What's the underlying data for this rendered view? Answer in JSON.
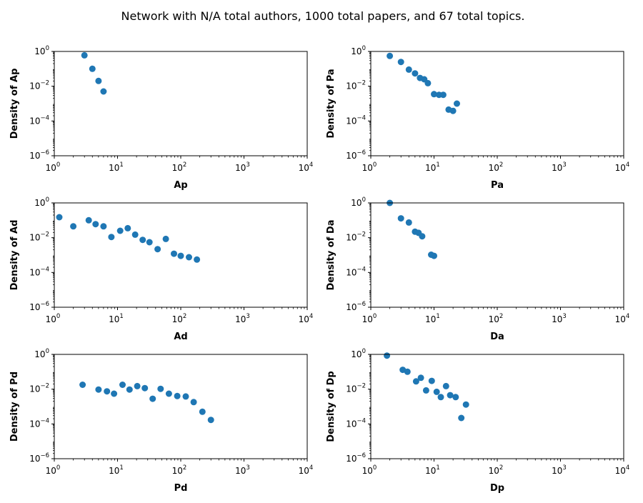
{
  "figure": {
    "title": "Network with N/A total authors, 1000 total papers, and 67 total topics."
  },
  "colors": {
    "marker": "#1f77b4"
  },
  "chart_data": [
    {
      "type": "scatter",
      "xlabel": "Ap",
      "ylabel": "Density of Ap",
      "xscale": "log",
      "yscale": "log",
      "xlim": [
        1,
        10000
      ],
      "ylim": [
        1e-06,
        1
      ],
      "x": [
        3,
        4,
        5,
        6
      ],
      "y": [
        0.6,
        0.1,
        0.02,
        0.005
      ]
    },
    {
      "type": "scatter",
      "xlabel": "Pa",
      "ylabel": "Density of Pa",
      "xscale": "log",
      "yscale": "log",
      "xlim": [
        1,
        10000
      ],
      "ylim": [
        1e-06,
        1
      ],
      "x": [
        2,
        3,
        4,
        5,
        6,
        7,
        8,
        10,
        12,
        14,
        17,
        20,
        23
      ],
      "y": [
        0.55,
        0.25,
        0.09,
        0.055,
        0.03,
        0.025,
        0.015,
        0.0035,
        0.0032,
        0.0032,
        0.00045,
        0.00038,
        0.001
      ]
    },
    {
      "type": "scatter",
      "xlabel": "Ad",
      "ylabel": "Density of Ad",
      "xscale": "log",
      "yscale": "log",
      "xlim": [
        1,
        10000
      ],
      "ylim": [
        1e-06,
        1
      ],
      "x": [
        1.2,
        2,
        3.5,
        4.5,
        6,
        8,
        11,
        14.5,
        19,
        25,
        32,
        43,
        58,
        78,
        100,
        135,
        180
      ],
      "y": [
        0.15,
        0.045,
        0.1,
        0.06,
        0.045,
        0.011,
        0.025,
        0.035,
        0.015,
        0.0075,
        0.0055,
        0.0022,
        0.0085,
        0.0012,
        0.0009,
        0.00075,
        0.00055
      ]
    },
    {
      "type": "scatter",
      "xlabel": "Da",
      "ylabel": "Density of Da",
      "xscale": "log",
      "yscale": "log",
      "xlim": [
        1,
        10000
      ],
      "ylim": [
        1e-06,
        1
      ],
      "x": [
        2,
        3,
        4,
        5,
        5.7,
        6.5,
        9,
        10
      ],
      "y": [
        1.0,
        0.13,
        0.075,
        0.022,
        0.019,
        0.012,
        0.00105,
        0.0009
      ]
    },
    {
      "type": "scatter",
      "xlabel": "Pd",
      "ylabel": "Density of Pd",
      "xscale": "log",
      "yscale": "log",
      "xlim": [
        1,
        10000
      ],
      "ylim": [
        1e-06,
        1
      ],
      "x": [
        2.8,
        5,
        6.8,
        8.8,
        12,
        15.5,
        20.5,
        27,
        36,
        48,
        65,
        88,
        120,
        160,
        220,
        300
      ],
      "y": [
        0.018,
        0.0095,
        0.0075,
        0.0055,
        0.018,
        0.0095,
        0.015,
        0.0115,
        0.0028,
        0.0105,
        0.0055,
        0.004,
        0.0038,
        0.0018,
        0.0005,
        0.00017
      ]
    },
    {
      "type": "scatter",
      "xlabel": "Dp",
      "ylabel": "Density of Dp",
      "xscale": "log",
      "yscale": "log",
      "xlim": [
        1,
        10000
      ],
      "ylim": [
        1e-06,
        1
      ],
      "x": [
        1.8,
        3.2,
        3.8,
        5.2,
        6.2,
        7.5,
        9.2,
        11,
        12.8,
        15.5,
        18,
        22,
        27,
        32
      ],
      "y": [
        0.85,
        0.13,
        0.1,
        0.028,
        0.045,
        0.0085,
        0.03,
        0.007,
        0.0035,
        0.015,
        0.0045,
        0.0035,
        0.00022,
        0.0013
      ]
    }
  ]
}
